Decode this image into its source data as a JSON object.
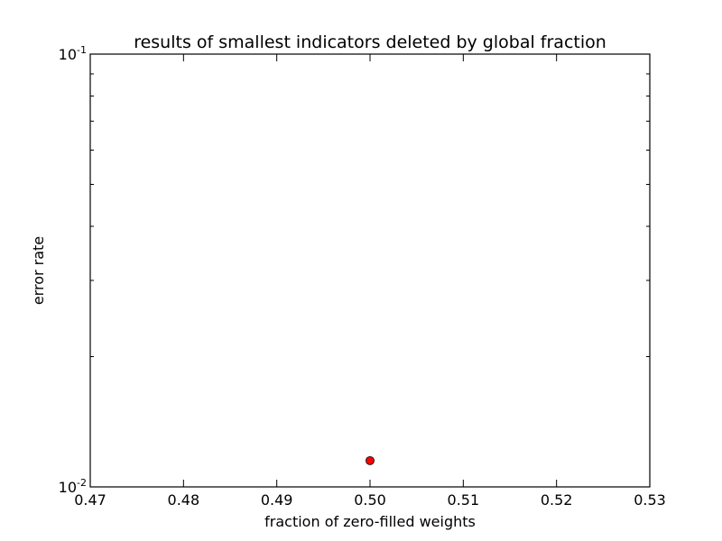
{
  "chart_data": {
    "type": "scatter",
    "title": "results of smallest indicators deleted by global fraction",
    "xlabel": "fraction of zero-filled weights",
    "ylabel": "error rate",
    "xlim": [
      0.47,
      0.53
    ],
    "ylim": [
      0.01,
      0.1
    ],
    "yscale": "log",
    "x_ticks": [
      0.47,
      0.48,
      0.49,
      0.5,
      0.51,
      0.52,
      0.53
    ],
    "x_tick_labels": [
      "0.47",
      "0.48",
      "0.49",
      "0.50",
      "0.51",
      "0.52",
      "0.53"
    ],
    "y_ticks": [
      {
        "value": 0.01,
        "base": "10",
        "exponent": "-2"
      },
      {
        "value": 0.1,
        "base": "10",
        "exponent": "-1"
      }
    ],
    "y_minor_ticks": [
      0.02,
      0.03,
      0.04,
      0.05,
      0.06,
      0.07,
      0.08,
      0.09
    ],
    "grid": false,
    "points": [
      {
        "x": 0.5,
        "y": 0.0115
      }
    ],
    "marker_color": "#ff0000",
    "marker_edge_color": "#000000"
  }
}
